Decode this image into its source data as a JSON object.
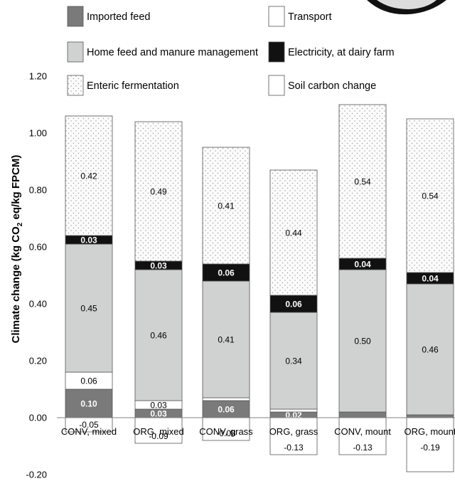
{
  "chart_data": {
    "type": "bar",
    "stacked": true,
    "ylabel": {
      "prefix": "Climate change (kg CO",
      "sub": "2",
      "suffix": " eq/kg FPCM)"
    },
    "ylim": [
      -0.2,
      1.2
    ],
    "yticks": [
      -0.2,
      0.0,
      0.2,
      0.4,
      0.6,
      0.8,
      1.0,
      1.2
    ],
    "ytick_labels": [
      "-0.20",
      "0.00",
      "0.20",
      "0.40",
      "0.60",
      "0.80",
      "1.00",
      "1.20"
    ],
    "grid": false,
    "legend_position": "top",
    "categories": [
      "CONV, mixed",
      "ORG, mixed",
      "CONV, grass",
      "ORG, grass",
      "CONV, mount",
      "ORG, mount"
    ],
    "series": [
      {
        "name": "Imported feed",
        "color": "#7a7a7a",
        "pattern": "solid",
        "values": [
          0.1,
          0.03,
          0.06,
          0.02,
          0.02,
          0.01
        ],
        "labels": [
          "0.10",
          "0.03",
          "0.06",
          "0.02",
          "",
          ""
        ]
      },
      {
        "name": "Transport",
        "color": "#ffffff",
        "pattern": "solid",
        "values": [
          0.06,
          0.03,
          0.01,
          0.01,
          0.0,
          0.0
        ],
        "labels": [
          "0.06",
          "0.03",
          "",
          "",
          "",
          ""
        ]
      },
      {
        "name": "Home feed and manure management",
        "color": "#d0d2d2",
        "pattern": "solid",
        "values": [
          0.45,
          0.46,
          0.41,
          0.34,
          0.5,
          0.46
        ],
        "labels": [
          "0.45",
          "0.46",
          "0.41",
          "0.34",
          "0.50",
          "0.46"
        ]
      },
      {
        "name": "Electricity, at dairy farm",
        "color": "#111111",
        "pattern": "solid",
        "values": [
          0.03,
          0.03,
          0.06,
          0.06,
          0.04,
          0.04
        ],
        "labels": [
          "0.03",
          "0.03",
          "0.06",
          "0.06",
          "0.04",
          "0.04"
        ]
      },
      {
        "name": "Enteric fermentation",
        "color": "#f5f5f5",
        "pattern": "dots",
        "values": [
          0.42,
          0.49,
          0.41,
          0.44,
          0.54,
          0.54
        ],
        "labels": [
          "0.42",
          "0.49",
          "0.41",
          "0.44",
          "0.54",
          "0.54"
        ]
      },
      {
        "name": "Soil carbon change",
        "color": "#ffffff",
        "pattern": "solid",
        "values": [
          -0.05,
          -0.09,
          -0.08,
          -0.13,
          -0.13,
          -0.19
        ],
        "labels": [
          "-0.05",
          "-0.09",
          "-0.08",
          "-0.13",
          "-0.13",
          "-0.19"
        ]
      }
    ],
    "legend_order": [
      "Imported feed",
      "Transport",
      "Home feed and manure management",
      "Electricity, at dairy farm",
      "Enteric fermentation",
      "Soil carbon change"
    ]
  }
}
